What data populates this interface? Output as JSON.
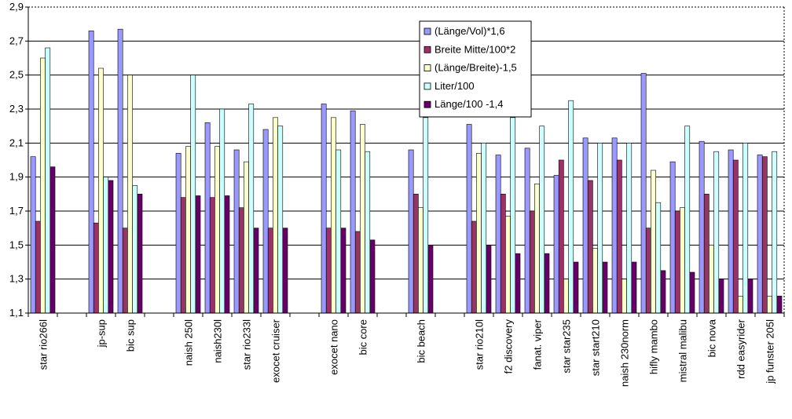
{
  "chart_data": {
    "type": "bar",
    "title": "",
    "xlabel": "",
    "ylabel": "",
    "ylim": [
      1.1,
      2.9
    ],
    "yticks": [
      "1,1",
      "1,3",
      "1,5",
      "1,7",
      "1,9",
      "2,1",
      "2,3",
      "2,5",
      "2,7",
      "2,9"
    ],
    "grid": true,
    "legend_position": "top-right",
    "categories": [
      "star rio266l",
      "",
      "jp-sup",
      "bic sup",
      "",
      "naish 250l",
      "naish230l",
      "star rio233l",
      "exocet cruiser",
      "",
      "exocet nano",
      "bic core",
      "",
      "bic beach",
      "",
      "star rio210l",
      "f2 discovery",
      "fanat. viper",
      "star star235",
      "star start210",
      "naish 230norm",
      "hifly mambo",
      "mistral malibu",
      "bic nova",
      "rdd easyrider",
      "jp funster 205l"
    ],
    "series": [
      {
        "name": "(Länge/Vol)*1,6",
        "color": "#9999ff",
        "values": [
          2.02,
          null,
          2.76,
          2.77,
          null,
          2.04,
          2.22,
          2.06,
          2.18,
          null,
          2.33,
          2.29,
          null,
          2.06,
          null,
          2.21,
          2.03,
          2.07,
          1.91,
          2.13,
          2.13,
          2.51,
          1.99,
          2.11,
          2.06,
          2.03
        ]
      },
      {
        "name": "Breite Mitte/100*2",
        "color": "#993366",
        "values": [
          1.64,
          null,
          1.63,
          1.6,
          null,
          1.78,
          1.78,
          1.72,
          1.6,
          null,
          1.6,
          1.58,
          null,
          1.8,
          null,
          1.64,
          1.8,
          1.7,
          2.0,
          1.88,
          2.0,
          1.6,
          1.7,
          1.8,
          2.0,
          2.02
        ]
      },
      {
        "name": "(Länge/Breite)-1,5",
        "color": "#ffffcc",
        "values": [
          2.6,
          null,
          2.54,
          2.5,
          null,
          2.08,
          2.08,
          1.99,
          2.25,
          null,
          2.25,
          2.21,
          null,
          1.72,
          null,
          2.04,
          1.67,
          1.86,
          1.3,
          1.48,
          1.3,
          1.94,
          1.72,
          1.5,
          1.2,
          1.2
        ]
      },
      {
        "name": "Liter/100",
        "color": "#ccffff",
        "values": [
          2.66,
          null,
          1.9,
          1.85,
          null,
          2.5,
          2.3,
          2.33,
          2.2,
          null,
          2.06,
          2.05,
          null,
          2.25,
          null,
          2.1,
          2.25,
          2.2,
          2.35,
          2.1,
          2.1,
          1.75,
          2.2,
          2.05,
          2.1,
          2.05
        ]
      },
      {
        "name": "Länge/100 -1,4",
        "color": "#660066",
        "values": [
          1.96,
          null,
          1.88,
          1.8,
          null,
          1.79,
          1.79,
          1.6,
          1.6,
          null,
          1.6,
          1.53,
          null,
          1.5,
          null,
          1.5,
          1.45,
          1.45,
          1.4,
          1.4,
          1.4,
          1.35,
          1.34,
          1.3,
          1.3,
          1.2
        ]
      }
    ]
  }
}
